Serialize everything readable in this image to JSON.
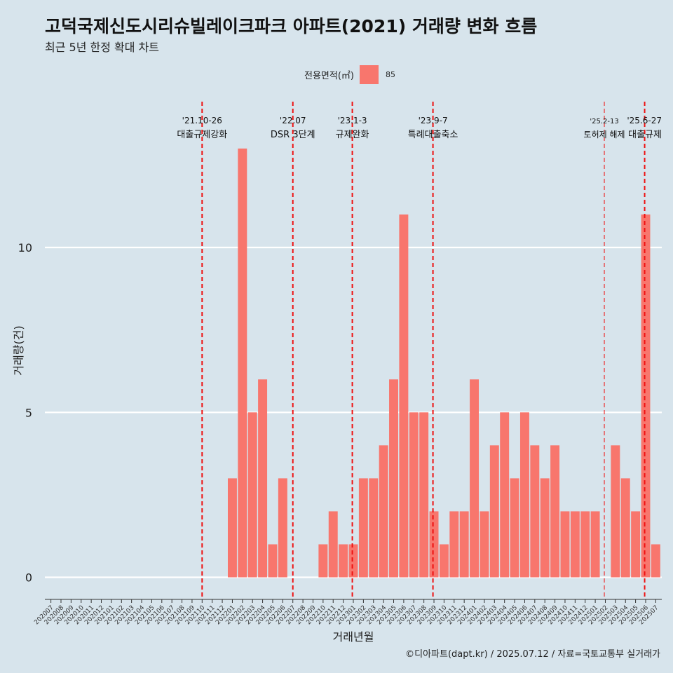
{
  "header": {
    "title": "고덕국제신도시리슈빌레이크파크 아파트(2021) 거래량 변화 흐름",
    "subtitle": "최근 5년 한정 확대 차트"
  },
  "footer": {
    "caption": "©디아파트(dapt.kr) / 2025.07.12 / 자료=국토교통부 실거래가"
  },
  "colors": {
    "bar": "#f8766d",
    "background": "#d7e4ec",
    "grid": "#ffffff",
    "event_line": "#ee1111"
  },
  "chart_data": {
    "type": "bar",
    "title": "고덕국제신도시리슈빌레이크파크 아파트(2021) 거래량 변화 흐름",
    "subtitle": "최근 5년 한정 확대 차트",
    "xlabel": "거래년월",
    "ylabel": "거래량(건)",
    "ylim": [
      0,
      13
    ],
    "yticks": [
      0,
      5,
      10
    ],
    "grid": true,
    "legend": {
      "title": "전용면적(㎡)",
      "placement": "top",
      "items": [
        "85"
      ]
    },
    "categories": [
      "202007",
      "202008",
      "202009",
      "202010",
      "202011",
      "202012",
      "202101",
      "202102",
      "202103",
      "202104",
      "202105",
      "202106",
      "202107",
      "202108",
      "202109",
      "202110",
      "202111",
      "202112",
      "202201",
      "202202",
      "202203",
      "202204",
      "202205",
      "202206",
      "202207",
      "202208",
      "202209",
      "202210",
      "202211",
      "202212",
      "202301",
      "202302",
      "202303",
      "202304",
      "202305",
      "202306",
      "202307",
      "202308",
      "202309",
      "202310",
      "202311",
      "202312",
      "202401",
      "202402",
      "202403",
      "202404",
      "202405",
      "202406",
      "202407",
      "202408",
      "202409",
      "202410",
      "202411",
      "202412",
      "202501",
      "202502",
      "202503",
      "202504",
      "202505",
      "202506",
      "202507"
    ],
    "series": [
      {
        "name": "85",
        "values": [
          0,
          0,
          0,
          0,
          0,
          0,
          0,
          0,
          0,
          0,
          0,
          0,
          0,
          0,
          0,
          0,
          0,
          0,
          3,
          13,
          5,
          6,
          1,
          3,
          0,
          0,
          0,
          1,
          2,
          1,
          1,
          3,
          3,
          4,
          6,
          11,
          5,
          5,
          2,
          1,
          2,
          2,
          6,
          2,
          4,
          5,
          3,
          5,
          4,
          3,
          4,
          2,
          2,
          2,
          2,
          0,
          4,
          3,
          2,
          11,
          1
        ]
      }
    ],
    "events": [
      {
        "date": "'21.10-26",
        "label": "대출규제강화",
        "position": 15.0,
        "style": "bold"
      },
      {
        "date": "'22.07",
        "label": "DSR 3단계",
        "position": 24.0,
        "style": "bold"
      },
      {
        "date": "'23.1-3",
        "label": "규제완화",
        "position": 29.9,
        "style": "bold"
      },
      {
        "date": "'23.9-7",
        "label": "특례대출축소",
        "position": 37.9,
        "style": "bold"
      },
      {
        "date": "'25.2-13",
        "label": "토허제 해제",
        "position": 54.9,
        "style": "thin"
      },
      {
        "date": "'25.6-27",
        "label": "대출규제",
        "position": 58.9,
        "style": "bold"
      }
    ]
  }
}
